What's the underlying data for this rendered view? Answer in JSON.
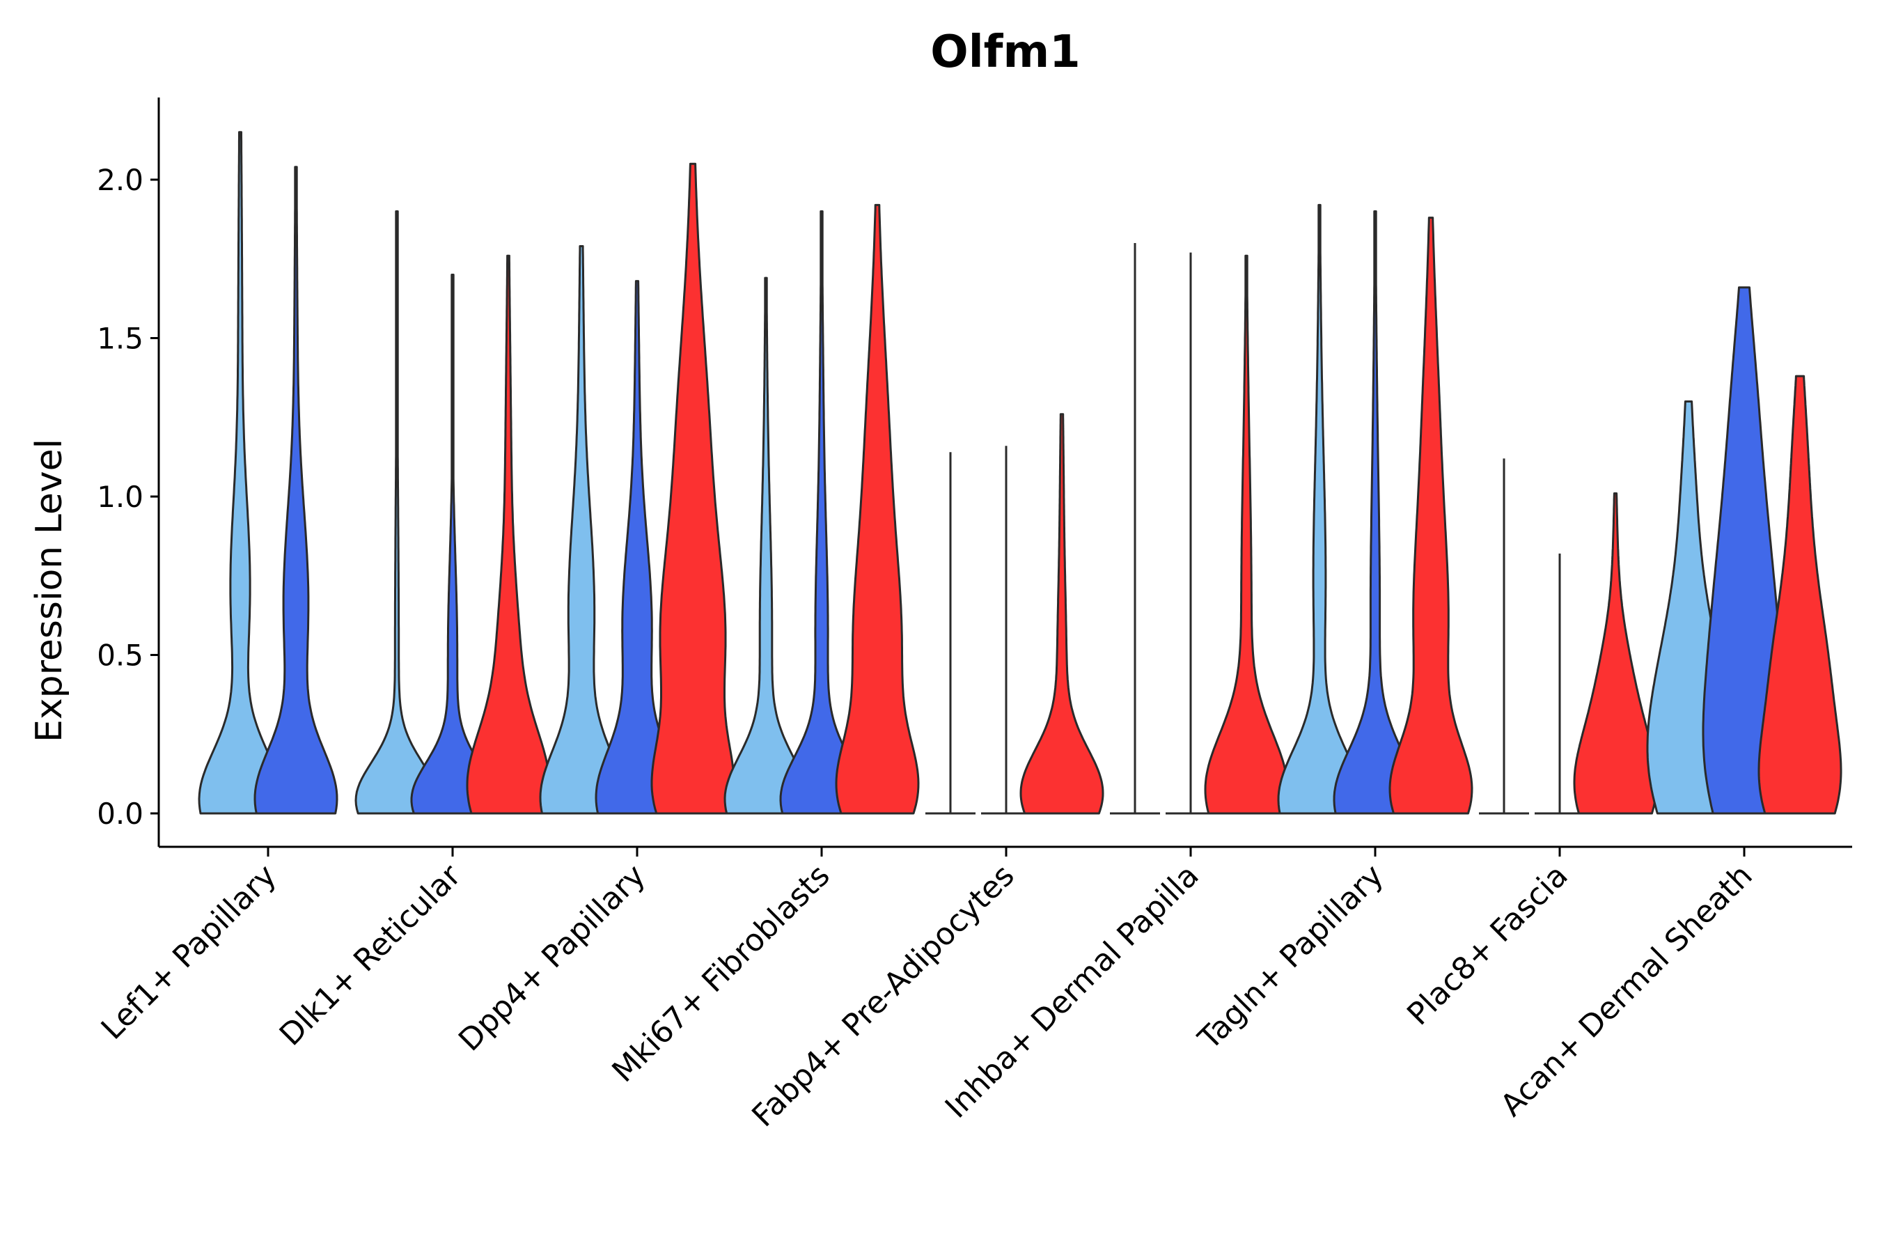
{
  "chart_data": {
    "type": "violin",
    "title": "Olfm1",
    "xlabel": "",
    "ylabel": "Expression Level",
    "ylim": [
      -0.11,
      2.25
    ],
    "yticks": [
      0.0,
      0.5,
      1.0,
      1.5,
      2.0
    ],
    "ytick_labels": [
      "0.0",
      "0.5",
      "1.0",
      "1.5",
      "2.0"
    ],
    "series": [
      {
        "name": "group-1",
        "color": "#7fbfee"
      },
      {
        "name": "group-2",
        "color": "#4169e9"
      },
      {
        "name": "group-3",
        "color": "#fc3131"
      }
    ],
    "categories": [
      {
        "label": "Lef1+ Papillary",
        "violins": [
          {
            "series": 0,
            "max": 2.15,
            "zero": false,
            "peaks": [
              [
                0.04,
                1.0,
                0.16
              ],
              [
                0.7,
                0.22,
                0.28
              ],
              [
                1.45,
                0.05,
                0.6
              ]
            ]
          },
          {
            "series": 1,
            "max": 2.04,
            "zero": false,
            "peaks": [
              [
                0.04,
                1.0,
                0.16
              ],
              [
                0.65,
                0.3,
                0.3
              ],
              [
                1.35,
                0.04,
                0.5
              ]
            ]
          }
        ]
      },
      {
        "label": "Dlk1+ Reticular",
        "violins": [
          {
            "series": 0,
            "max": 1.9,
            "zero": false,
            "peaks": [
              [
                0.04,
                0.85,
                0.12
              ],
              [
                0.5,
                0.04,
                0.5
              ]
            ]
          },
          {
            "series": 1,
            "max": 1.7,
            "zero": false,
            "peaks": [
              [
                0.04,
                0.85,
                0.12
              ],
              [
                0.5,
                0.1,
                0.3
              ]
            ]
          },
          {
            "series": 2,
            "max": 1.76,
            "zero": false,
            "peaks": [
              [
                0.07,
                1.0,
                0.18
              ],
              [
                0.45,
                0.26,
                0.25
              ],
              [
                1.0,
                0.08,
                0.5
              ]
            ]
          }
        ]
      },
      {
        "label": "Dpp4+ Papillary",
        "violins": [
          {
            "series": 0,
            "max": 1.79,
            "zero": false,
            "peaks": [
              [
                0.04,
                1.0,
                0.16
              ],
              [
                0.62,
                0.32,
                0.32
              ],
              [
                1.35,
                0.06,
                0.45
              ]
            ]
          },
          {
            "series": 1,
            "max": 1.68,
            "zero": false,
            "peaks": [
              [
                0.04,
                1.0,
                0.16
              ],
              [
                0.58,
                0.36,
                0.28
              ],
              [
                1.2,
                0.06,
                0.4
              ]
            ]
          },
          {
            "series": 2,
            "max": 2.05,
            "zero": false,
            "peaks": [
              [
                0.05,
                1.0,
                0.16
              ],
              [
                0.5,
                0.9,
                0.3
              ],
              [
                1.1,
                0.48,
                0.38
              ],
              [
                1.65,
                0.1,
                0.4
              ]
            ]
          }
        ]
      },
      {
        "label": "Mki67+ Fibroblasts",
        "violins": [
          {
            "series": 0,
            "max": 1.69,
            "zero": false,
            "peaks": [
              [
                0.04,
                0.95,
                0.14
              ],
              [
                0.55,
                0.14,
                0.35
              ],
              [
                1.2,
                0.03,
                0.4
              ]
            ]
          },
          {
            "series": 1,
            "max": 1.9,
            "zero": false,
            "peaks": [
              [
                0.04,
                0.95,
                0.14
              ],
              [
                0.55,
                0.14,
                0.32
              ],
              [
                1.2,
                0.04,
                0.4
              ]
            ]
          },
          {
            "series": 2,
            "max": 1.92,
            "zero": false,
            "peaks": [
              [
                0.06,
                1.0,
                0.16
              ],
              [
                0.48,
                0.62,
                0.3
              ],
              [
                1.05,
                0.34,
                0.38
              ],
              [
                1.55,
                0.06,
                0.35
              ]
            ]
          }
        ]
      },
      {
        "label": "Fabp4+ Pre-Adipocytes",
        "violins": [
          {
            "series": 0,
            "max": 1.14,
            "zero": true,
            "peaks": []
          },
          {
            "series": 1,
            "max": 1.16,
            "zero": true,
            "peaks": []
          },
          {
            "series": 2,
            "max": 1.26,
            "zero": false,
            "peaks": [
              [
                0.06,
                0.95,
                0.14
              ],
              [
                0.45,
                0.1,
                0.25
              ],
              [
                1.0,
                0.04,
                0.3
              ]
            ]
          }
        ]
      },
      {
        "label": "Inhba+ Dermal Papilla",
        "violins": [
          {
            "series": 0,
            "max": 1.8,
            "zero": true,
            "peaks": []
          },
          {
            "series": 1,
            "max": 1.77,
            "zero": true,
            "peaks": []
          },
          {
            "series": 2,
            "max": 1.76,
            "zero": false,
            "peaks": [
              [
                0.07,
                1.0,
                0.18
              ],
              [
                0.6,
                0.1,
                0.35
              ],
              [
                1.1,
                0.05,
                0.4
              ]
            ]
          }
        ]
      },
      {
        "label": "Tagln+ Papillary",
        "violins": [
          {
            "series": 0,
            "max": 1.92,
            "zero": false,
            "peaks": [
              [
                0.04,
                1.0,
                0.16
              ],
              [
                0.7,
                0.14,
                0.35
              ],
              [
                1.3,
                0.04,
                0.4
              ]
            ]
          },
          {
            "series": 1,
            "max": 1.9,
            "zero": false,
            "peaks": [
              [
                0.04,
                1.0,
                0.16
              ],
              [
                0.6,
                0.1,
                0.35
              ],
              [
                1.2,
                0.04,
                0.4
              ]
            ]
          },
          {
            "series": 2,
            "max": 1.88,
            "zero": false,
            "peaks": [
              [
                0.06,
                1.0,
                0.16
              ],
              [
                0.55,
                0.4,
                0.3
              ],
              [
                1.1,
                0.22,
                0.35
              ],
              [
                1.6,
                0.05,
                0.3
              ]
            ]
          }
        ]
      },
      {
        "label": "Plac8+ Fascia",
        "violins": [
          {
            "series": 0,
            "max": 1.12,
            "zero": true,
            "peaks": []
          },
          {
            "series": 1,
            "max": 0.82,
            "zero": true,
            "peaks": []
          },
          {
            "series": 2,
            "max": 1.01,
            "zero": false,
            "peaks": [
              [
                0.07,
                1.0,
                0.18
              ],
              [
                0.4,
                0.36,
                0.18
              ],
              [
                0.8,
                0.05,
                0.2
              ]
            ]
          }
        ]
      },
      {
        "label": "Acan+ Dermal Sheath",
        "violins": [
          {
            "series": 0,
            "max": 1.3,
            "zero": false,
            "peaks": [
              [
                0.1,
                0.95,
                0.22
              ],
              [
                0.42,
                0.7,
                0.24
              ],
              [
                0.9,
                0.25,
                0.3
              ]
            ]
          },
          {
            "series": 1,
            "max": 1.66,
            "zero": false,
            "peaks": [
              [
                0.1,
                1.0,
                0.25
              ],
              [
                0.5,
                0.92,
                0.3
              ],
              [
                1.0,
                0.55,
                0.32
              ],
              [
                1.45,
                0.18,
                0.25
              ]
            ]
          },
          {
            "series": 2,
            "max": 1.38,
            "zero": false,
            "peaks": [
              [
                0.05,
                1.0,
                0.18
              ],
              [
                0.38,
                0.9,
                0.25
              ],
              [
                0.85,
                0.35,
                0.3
              ],
              [
                1.25,
                0.08,
                0.2
              ]
            ]
          }
        ]
      }
    ]
  }
}
